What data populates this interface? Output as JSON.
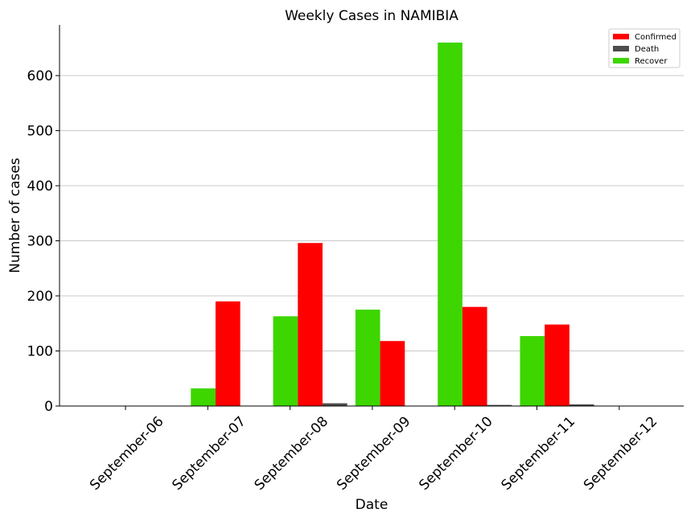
{
  "chart_data": {
    "type": "bar",
    "title": "Weekly Cases in NAMIBIA",
    "xlabel": "Date",
    "ylabel": "Number of cases",
    "categories": [
      "September-06",
      "September-07",
      "September-08",
      "September-09",
      "September-10",
      "September-11",
      "September-12"
    ],
    "series": [
      {
        "name": "Recover",
        "color": "#3dd600",
        "values": [
          0,
          32,
          163,
          175,
          660,
          127,
          0
        ]
      },
      {
        "name": "Confirmed",
        "color": "#ff0000",
        "values": [
          0,
          190,
          296,
          118,
          180,
          148,
          0
        ]
      },
      {
        "name": "Death",
        "color": "#4d4d4d",
        "values": [
          0,
          0,
          5,
          0,
          2,
          3,
          0
        ]
      }
    ],
    "legend_order": [
      "Confirmed",
      "Death",
      "Recover"
    ],
    "yticks": [
      0,
      100,
      200,
      300,
      400,
      500,
      600
    ],
    "ylim": [
      0,
      692
    ],
    "grid": "horizontal",
    "legend_position": "top-right"
  }
}
